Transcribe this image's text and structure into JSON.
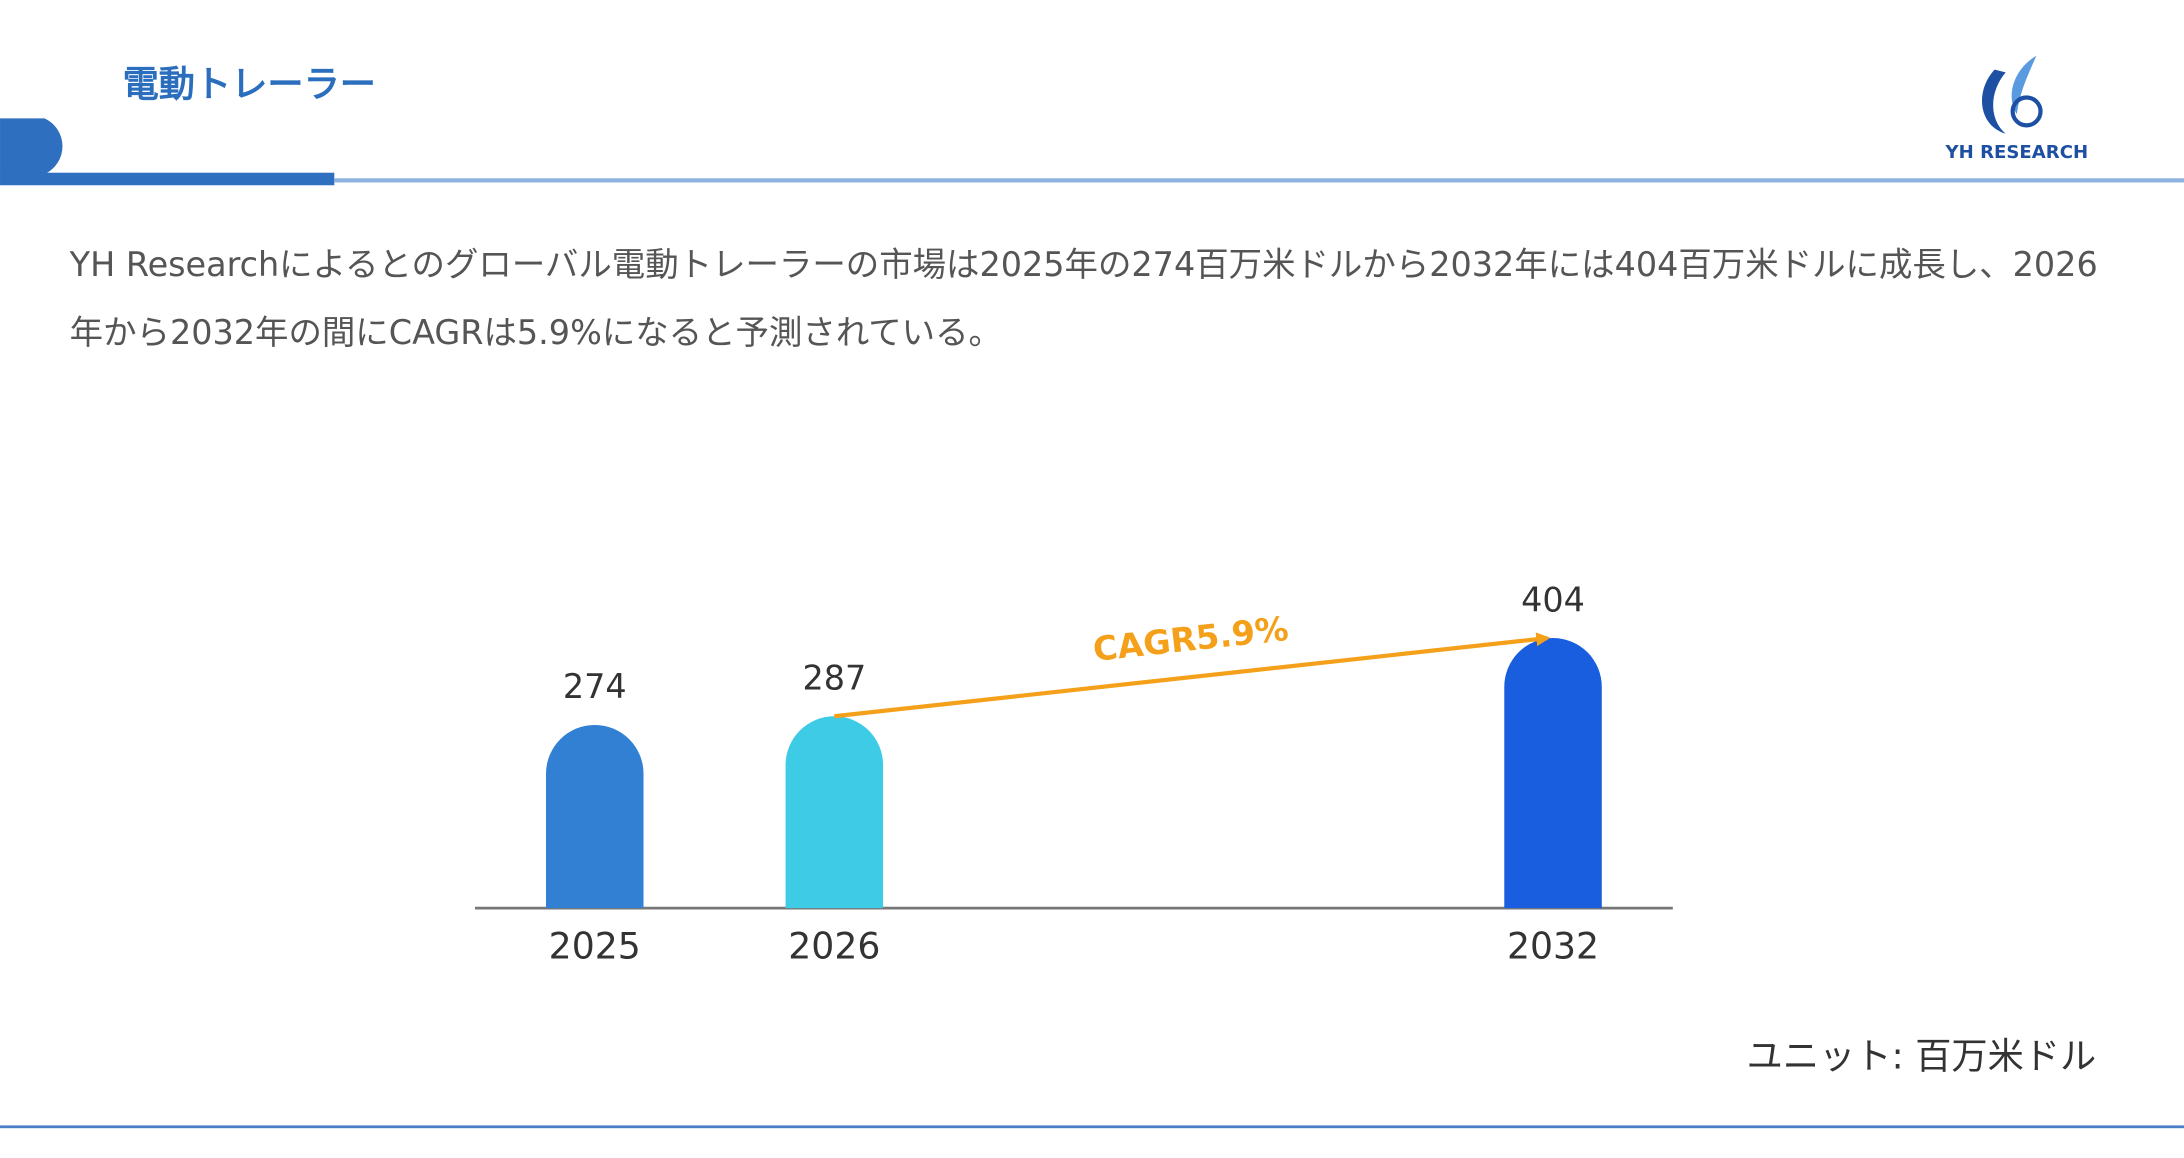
{
  "header": {
    "title": "電動トレーラー",
    "logo": "YH RESEARCH"
  },
  "description": "YH Researchによるとのグローバル電動トレーラーの市場は2025年の274百万米ドルから2032年には404百万米ドルに成長し、2026年から2032年の間にCAGRは5.9%になると予測されている。",
  "chart_data": {
    "type": "bar",
    "categories": [
      "2025",
      "2026",
      "2032"
    ],
    "values": [
      274,
      287,
      404
    ],
    "colors": [
      "#3180d4",
      "#3ecbe6",
      "#1a5ee0"
    ],
    "annotation": "CAGR5.9%",
    "unit": "ユニット: 百万米ドル"
  }
}
